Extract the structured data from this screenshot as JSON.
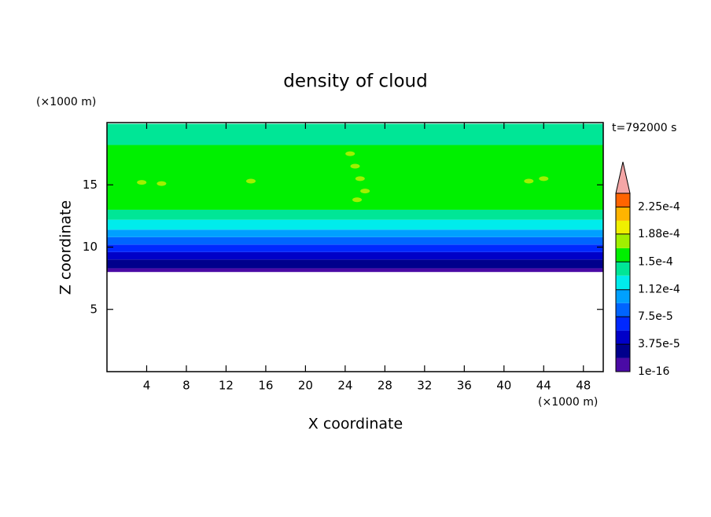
{
  "chart_data": {
    "type": "contour",
    "title": "density of cloud",
    "x_label": "X coordinate",
    "y_label": "Z coordinate",
    "x_unit": "(×1000 m)",
    "y_unit": "(×1000 m)",
    "time_label": "t=792000 s",
    "xlim": [
      0,
      50
    ],
    "xticks": [
      4,
      8,
      12,
      16,
      20,
      24,
      28,
      32,
      36,
      40,
      44,
      48
    ],
    "ylim": [
      0,
      20
    ],
    "yticks": [
      5,
      10,
      15
    ],
    "profile": {
      "z_bottom": [
        8.0,
        8.3,
        9.0,
        9.6,
        10.2,
        10.8,
        11.4,
        12.2,
        13.0,
        18.2
      ],
      "z_top": [
        8.3,
        9.0,
        9.6,
        10.2,
        10.8,
        11.4,
        12.2,
        13.0,
        18.2,
        19.9
      ],
      "values": [
        1e-05,
        2.8e-05,
        4.7e-05,
        6.5e-05,
        8.4e-05,
        0.0001,
        0.00012,
        0.000135,
        0.000155,
        0.000135
      ]
    },
    "spots": {
      "x": [
        3.5,
        5.5,
        14.5,
        24.5,
        25.0,
        25.5,
        26.0,
        25.2,
        42.5,
        44.0
      ],
      "z": [
        15.2,
        15.1,
        15.3,
        17.5,
        16.5,
        15.5,
        14.5,
        13.8,
        15.3,
        15.5
      ],
      "values": [
        0.000175,
        0.000175,
        0.000175,
        0.000175,
        0.000175,
        0.000175,
        0.000175,
        0.000175,
        0.000175,
        0.000175
      ]
    },
    "colorbar": {
      "clim": [
        0,
        0.00024375
      ],
      "colors": [
        "#4a0aa5",
        "#00008c",
        "#0000c8",
        "#0028ff",
        "#0064ff",
        "#00a0ff",
        "#00ecec",
        "#00e696",
        "#00f000",
        "#a0f000",
        "#f0f000",
        "#ffb400",
        "#ff6400"
      ],
      "top_color": "#ff1e1e",
      "extend_color": "#f4a6a6",
      "ticks": [
        {
          "value": 1e-16,
          "label": "1e-16"
        },
        {
          "value": 3.75e-05,
          "label": "3.75e-5"
        },
        {
          "value": 7.5e-05,
          "label": "7.5e-5"
        },
        {
          "value": 0.000112,
          "label": "1.12e-4"
        },
        {
          "value": 0.00015,
          "label": "1.5e-4"
        },
        {
          "value": 0.000188,
          "label": "1.88e-4"
        },
        {
          "value": 0.000225,
          "label": "2.25e-4"
        }
      ]
    }
  }
}
